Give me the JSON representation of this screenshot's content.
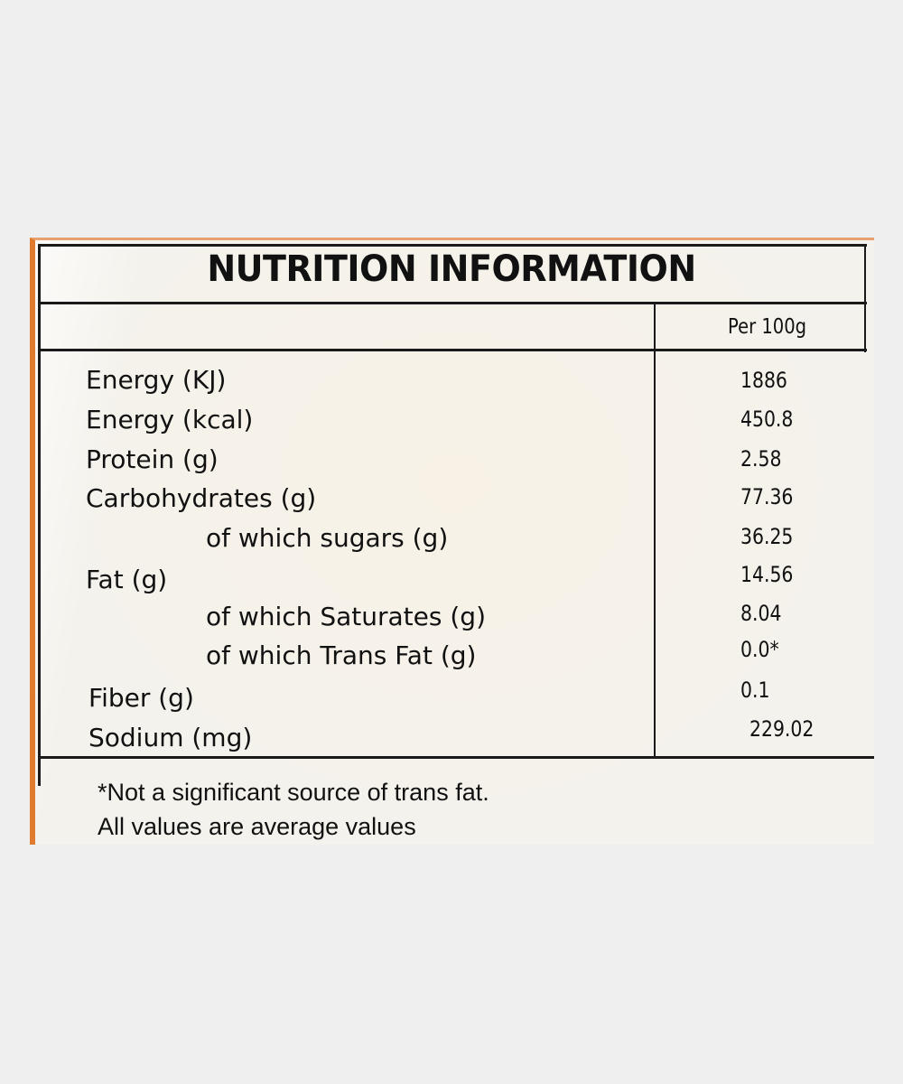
{
  "title": "NUTRITION INFORMATION",
  "column_header": "Per 100g",
  "rows": [
    {
      "label": "Energy (KJ)",
      "value": "1886",
      "indent": false
    },
    {
      "label": "Energy (kcal)",
      "value": "450.8",
      "indent": false
    },
    {
      "label": "Protein (g)",
      "value": "2.58",
      "indent": false
    },
    {
      "label": "Carbohydrates (g)",
      "value": "77.36",
      "indent": false
    },
    {
      "label": "of which sugars (g)",
      "value": "36.25",
      "indent": true
    },
    {
      "label": "Fat (g)",
      "value": "14.56",
      "indent": false
    },
    {
      "label": "of which Saturates (g)",
      "value": "8.04",
      "indent": true
    },
    {
      "label": "of which Trans Fat (g)",
      "value": "0.0*",
      "indent": true
    },
    {
      "label": "Fiber (g)",
      "value": "0.1",
      "indent": false
    },
    {
      "label": "Sodium (mg)",
      "value": "229.02",
      "indent": false
    }
  ],
  "footnotes": [
    "*Not a significant source of trans fat.",
    "All values are average values"
  ],
  "colors": {
    "background": "#efefef",
    "label": "#f4f2ec",
    "accent": "#e07a2e",
    "ink": "#111111"
  }
}
